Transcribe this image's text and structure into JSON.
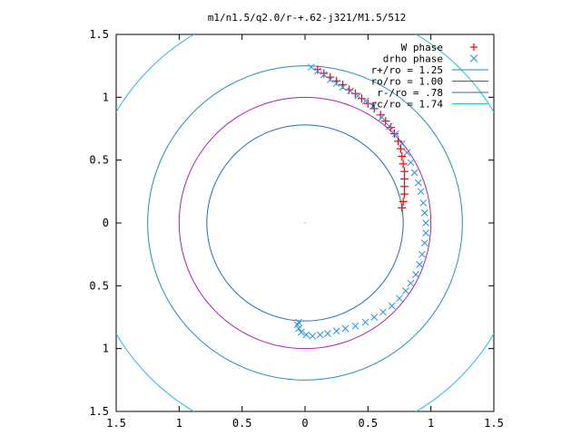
{
  "chart_data": {
    "type": "scatter",
    "title": "m1/n1.5/q2.0/r-+.62-j321/M1.5/512",
    "xlim": [
      -1.5,
      1.5
    ],
    "ylim": [
      -1.5,
      1.5
    ],
    "x_ticks": [
      -1.5,
      -1,
      -0.5,
      0,
      0.5,
      1,
      1.5
    ],
    "y_ticks": [
      -1.5,
      -1,
      -0.5,
      0,
      0.5,
      1,
      1.5
    ],
    "x_tick_labels": [
      "1.5",
      "1",
      "0.5",
      "0",
      "0.5",
      "1",
      "1.5"
    ],
    "y_tick_labels": [
      "1.5",
      "1",
      "0.5",
      "0",
      "0.5",
      "1",
      "1.5"
    ],
    "grid": false,
    "legend_position": "top-right",
    "series": [
      {
        "name": "W phase",
        "marker": "plus",
        "color": "#ff0000",
        "points": [
          [
            0.1,
            1.22
          ],
          [
            0.15,
            1.19
          ],
          [
            0.2,
            1.16
          ],
          [
            0.25,
            1.13
          ],
          [
            0.3,
            1.1
          ],
          [
            0.35,
            1.06
          ],
          [
            0.4,
            1.03
          ],
          [
            0.45,
            0.99
          ],
          [
            0.5,
            0.95
          ],
          [
            0.55,
            0.91
          ],
          [
            0.6,
            0.86
          ],
          [
            0.64,
            0.81
          ],
          [
            0.68,
            0.76
          ],
          [
            0.71,
            0.71
          ],
          [
            0.74,
            0.65
          ],
          [
            0.76,
            0.59
          ],
          [
            0.77,
            0.53
          ],
          [
            0.78,
            0.47
          ],
          [
            0.79,
            0.41
          ],
          [
            0.79,
            0.35
          ],
          [
            0.79,
            0.29
          ],
          [
            0.79,
            0.23
          ],
          [
            0.78,
            0.17
          ],
          [
            0.77,
            0.12
          ]
        ]
      },
      {
        "name": "drho phase",
        "marker": "cross",
        "color": "#1e90ff",
        "points": [
          [
            0.05,
            1.24
          ],
          [
            0.1,
            1.21
          ],
          [
            0.15,
            1.18
          ],
          [
            0.2,
            1.14
          ],
          [
            0.25,
            1.11
          ],
          [
            0.3,
            1.08
          ],
          [
            0.36,
            1.05
          ],
          [
            0.42,
            1.01
          ],
          [
            0.48,
            0.97
          ],
          [
            0.54,
            0.93
          ],
          [
            0.61,
            0.84
          ],
          [
            0.67,
            0.77
          ],
          [
            0.72,
            0.71
          ],
          [
            0.77,
            0.63
          ],
          [
            0.81,
            0.56
          ],
          [
            0.84,
            0.48
          ],
          [
            0.87,
            0.4
          ],
          [
            0.9,
            0.32
          ],
          [
            0.92,
            0.25
          ],
          [
            0.94,
            0.16
          ],
          [
            0.95,
            0.08
          ],
          [
            0.96,
            0.0
          ],
          [
            0.96,
            -0.08
          ],
          [
            0.95,
            -0.16
          ],
          [
            0.93,
            -0.25
          ],
          [
            0.91,
            -0.33
          ],
          [
            0.88,
            -0.41
          ],
          [
            0.84,
            -0.48
          ],
          [
            0.8,
            -0.54
          ],
          [
            0.75,
            -0.6
          ],
          [
            0.69,
            -0.66
          ],
          [
            0.62,
            -0.71
          ],
          [
            0.55,
            -0.75
          ],
          [
            0.48,
            -0.79
          ],
          [
            0.4,
            -0.82
          ],
          [
            0.32,
            -0.84
          ],
          [
            0.25,
            -0.86
          ],
          [
            0.18,
            -0.88
          ],
          [
            0.12,
            -0.89
          ],
          [
            0.06,
            -0.9
          ],
          [
            0.01,
            -0.89
          ],
          [
            -0.03,
            -0.87
          ],
          [
            -0.05,
            -0.84
          ],
          [
            -0.06,
            -0.81
          ],
          [
            -0.05,
            -0.79
          ]
        ]
      }
    ],
    "circles": [
      {
        "name": "r+/ro = 1.25",
        "radius": 1.25,
        "color": "#1e8fbf"
      },
      {
        "name": "ro/ro = 1.00",
        "radius": 1.0,
        "color": "#b020b0"
      },
      {
        "name": "r-/ro = .78",
        "radius": 0.78,
        "color": "#1e6fbf"
      },
      {
        "name": "rc/ro = 1.74",
        "radius": 1.74,
        "color": "#20c0e0"
      }
    ]
  }
}
